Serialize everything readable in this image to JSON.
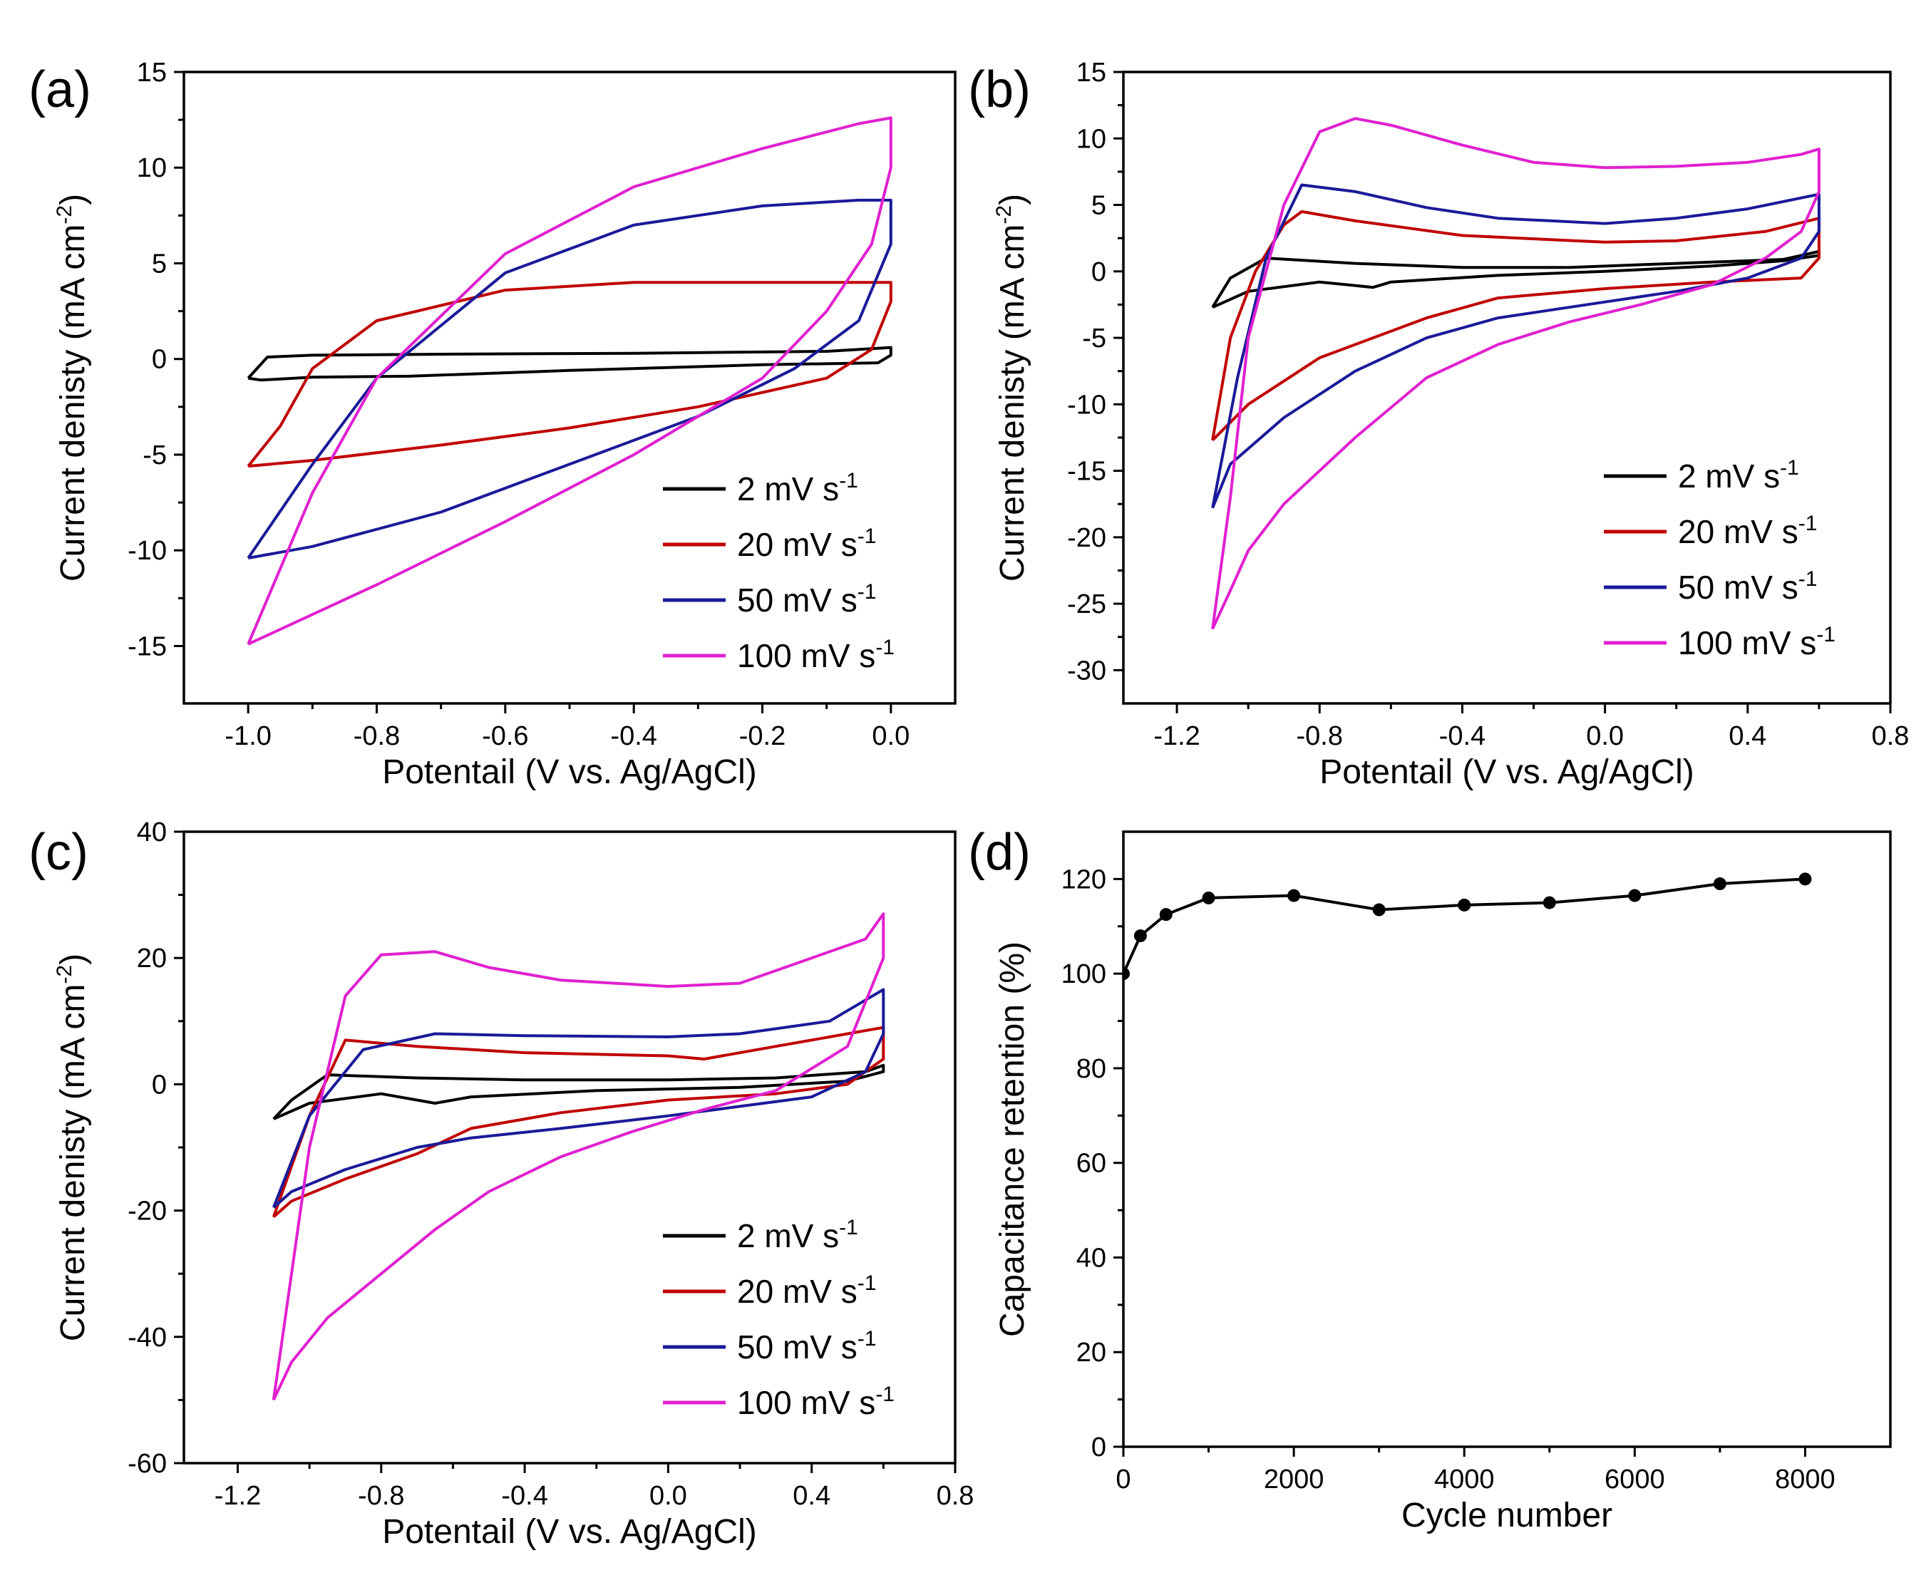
{
  "chart_data": [
    {
      "panel": "(a)",
      "type": "line",
      "xlabel": "Potentail (V vs. Ag/AgCl)",
      "ylabel": "Current denisty (mA cm-2)",
      "ylabel_main": "Current denisty (mA cm",
      "ylabel_sup": "-2",
      "ylabel_end": ")",
      "xlim": [
        -1.1,
        0.1
      ],
      "ylim": [
        -18,
        15
      ],
      "xticks": [
        -1.0,
        -0.8,
        -0.6,
        -0.4,
        -0.2,
        0.0
      ],
      "xtick_labels": [
        "-1.0",
        "-0.8",
        "-0.6",
        "-0.4",
        "-0.2",
        "0.0"
      ],
      "yticks": [
        -15,
        -10,
        -5,
        0,
        5,
        10,
        15
      ],
      "ytick_labels": [
        "-15",
        "-10",
        "-5",
        "0",
        "5",
        "10",
        "15"
      ],
      "legend_position": "bottom-right",
      "series": [
        {
          "name": "2 mV s-1",
          "label": "2 mV s",
          "sup": "-1",
          "color": "#000000",
          "x": [
            -1.0,
            -0.97,
            -0.9,
            -0.7,
            -0.4,
            -0.1,
            0.0,
            0.0,
            -0.02,
            -0.2,
            -0.5,
            -0.75,
            -0.9,
            -0.98,
            -1.0
          ],
          "y": [
            -1.0,
            0.1,
            0.2,
            0.25,
            0.3,
            0.4,
            0.6,
            0.2,
            -0.2,
            -0.3,
            -0.6,
            -0.9,
            -0.95,
            -1.1,
            -1.0
          ]
        },
        {
          "name": "20 mV s-1",
          "label": "20 mV s",
          "sup": "-1",
          "color": "#c00000",
          "x": [
            -1.0,
            -0.95,
            -0.9,
            -0.8,
            -0.6,
            -0.4,
            -0.2,
            0.0,
            0.0,
            -0.03,
            -0.1,
            -0.3,
            -0.5,
            -0.7,
            -0.9,
            -1.0
          ],
          "y": [
            -5.6,
            -3.5,
            -0.5,
            2.0,
            3.6,
            4.0,
            4.0,
            4.0,
            3.0,
            0.5,
            -1.0,
            -2.5,
            -3.6,
            -4.5,
            -5.3,
            -5.6
          ]
        },
        {
          "name": "50 mV s-1",
          "label": "50 mV s",
          "sup": "-1",
          "color": "#1a1a99",
          "x": [
            -1.0,
            -0.9,
            -0.8,
            -0.6,
            -0.4,
            -0.2,
            -0.05,
            0.0,
            0.0,
            -0.05,
            -0.15,
            -0.3,
            -0.5,
            -0.7,
            -0.9,
            -1.0
          ],
          "y": [
            -10.4,
            -5.5,
            -1.0,
            4.5,
            7.0,
            8.0,
            8.3,
            8.3,
            6.0,
            2.0,
            -0.5,
            -3.0,
            -5.5,
            -8.0,
            -9.8,
            -10.4
          ]
        },
        {
          "name": "100 mV s-1",
          "label": "100 mV s",
          "sup": "-1",
          "color": "#e020d0",
          "x": [
            -1.0,
            -0.9,
            -0.8,
            -0.6,
            -0.4,
            -0.2,
            -0.05,
            0.0,
            0.0,
            -0.03,
            -0.1,
            -0.2,
            -0.4,
            -0.6,
            -0.8,
            -1.0
          ],
          "y": [
            -14.9,
            -7.0,
            -1.0,
            5.5,
            9.0,
            11.0,
            12.3,
            12.6,
            10.0,
            6.0,
            2.5,
            -1.0,
            -5.0,
            -8.5,
            -11.8,
            -14.9
          ]
        }
      ]
    },
    {
      "panel": "(b)",
      "type": "line",
      "xlabel": "Potentail (V vs. Ag/AgCl)",
      "ylabel": "Current denisty (mA cm-2)",
      "ylabel_main": "Current denisty (mA cm",
      "ylabel_sup": "-2",
      "ylabel_end": ")",
      "xlim": [
        -1.35,
        0.8
      ],
      "ylim": [
        -32.5,
        15
      ],
      "xticks": [
        -1.2,
        -0.8,
        -0.4,
        0.0,
        0.4,
        0.8
      ],
      "xtick_labels": [
        "-1.2",
        "-0.8",
        "-0.4",
        "0.0",
        "0.4",
        "0.8"
      ],
      "yticks": [
        -30,
        -25,
        -20,
        -15,
        -10,
        -5,
        0,
        5,
        10,
        15
      ],
      "ytick_labels": [
        "-30",
        "-25",
        "-20",
        "-15",
        "-10",
        "-5",
        "0",
        "5",
        "10",
        "15"
      ],
      "legend_position": "bottom-right",
      "series": [
        {
          "name": "2 mV s-1",
          "label": "2 mV s",
          "sup": "-1",
          "color": "#000000",
          "x": [
            -1.1,
            -1.05,
            -0.95,
            -0.7,
            -0.4,
            -0.1,
            0.2,
            0.5,
            0.6,
            0.6,
            0.5,
            0.3,
            0.0,
            -0.3,
            -0.6,
            -0.65,
            -0.8,
            -1.0,
            -1.1
          ],
          "y": [
            -2.7,
            -0.5,
            1.0,
            0.6,
            0.3,
            0.3,
            0.6,
            0.9,
            1.5,
            1.2,
            0.8,
            0.4,
            0.0,
            -0.3,
            -0.8,
            -1.2,
            -0.8,
            -1.5,
            -2.7
          ]
        },
        {
          "name": "20 mV s-1",
          "label": "20 mV s",
          "sup": "-1",
          "color": "#c00000",
          "x": [
            -1.1,
            -1.05,
            -0.98,
            -0.9,
            -0.85,
            -0.7,
            -0.4,
            0.0,
            0.2,
            0.45,
            0.6,
            0.6,
            0.55,
            0.3,
            0.0,
            -0.3,
            -0.5,
            -0.6,
            -0.8,
            -1.0,
            -1.1
          ],
          "y": [
            -12.7,
            -5.0,
            0.0,
            3.5,
            4.5,
            3.8,
            2.7,
            2.2,
            2.3,
            3.0,
            4.0,
            1.0,
            -0.5,
            -0.8,
            -1.3,
            -2.0,
            -3.5,
            -4.5,
            -6.5,
            -10.0,
            -12.7
          ]
        },
        {
          "name": "50 mV s-1",
          "label": "50 mV s",
          "sup": "-1",
          "color": "#1a1a99",
          "x": [
            -1.1,
            -1.03,
            -0.95,
            -0.85,
            -0.7,
            -0.5,
            -0.3,
            0.0,
            0.2,
            0.4,
            0.6,
            0.6,
            0.55,
            0.4,
            0.2,
            0.0,
            -0.3,
            -0.5,
            -0.7,
            -0.9,
            -1.05,
            -1.1
          ],
          "y": [
            -17.8,
            -8.0,
            1.0,
            6.5,
            6.0,
            4.8,
            4.0,
            3.6,
            4.0,
            4.7,
            5.8,
            3.0,
            1.0,
            -0.5,
            -1.5,
            -2.3,
            -3.5,
            -5.0,
            -7.5,
            -11.0,
            -14.5,
            -17.8
          ]
        },
        {
          "name": "100 mV s-1",
          "label": "100 mV s",
          "sup": "-1",
          "color": "#e020d0",
          "x": [
            -1.1,
            -1.05,
            -1.0,
            -0.9,
            -0.8,
            -0.7,
            -0.6,
            -0.4,
            -0.2,
            0.0,
            0.2,
            0.4,
            0.55,
            0.6,
            0.6,
            0.55,
            0.45,
            0.3,
            0.1,
            -0.1,
            -0.3,
            -0.5,
            -0.7,
            -0.9,
            -1.0,
            -1.05,
            -1.1
          ],
          "y": [
            -26.9,
            -17.0,
            -5.0,
            5.0,
            10.5,
            11.5,
            11.0,
            9.5,
            8.2,
            7.8,
            7.9,
            8.2,
            8.8,
            9.2,
            6.0,
            3.0,
            1.0,
            -1.0,
            -2.5,
            -3.8,
            -5.5,
            -8.0,
            -12.5,
            -17.5,
            -21.0,
            -24.0,
            -26.9
          ]
        }
      ]
    },
    {
      "panel": "(c)",
      "type": "line",
      "xlabel": "Potentail (V vs. Ag/AgCl)",
      "ylabel": "Current denisty (mA cm-2)",
      "ylabel_main": "Current denisty (mA cm",
      "ylabel_sup": "-2",
      "ylabel_end": ")",
      "xlim": [
        -1.35,
        0.8
      ],
      "ylim": [
        -60,
        40
      ],
      "xticks": [
        -1.2,
        -0.8,
        -0.4,
        0.0,
        0.4,
        0.8
      ],
      "xtick_labels": [
        "-1.2",
        "-0.8",
        "-0.4",
        "0.0",
        "0.4",
        "0.8"
      ],
      "yticks": [
        -60,
        -40,
        -20,
        0,
        20,
        40
      ],
      "ytick_labels": [
        "-60",
        "-40",
        "-20",
        "0",
        "20",
        "40"
      ],
      "legend_position": "bottom-right",
      "series": [
        {
          "name": "2 mV s-1",
          "label": "2 mV s",
          "sup": "-1",
          "color": "#000000",
          "x": [
            -1.1,
            -1.05,
            -0.95,
            -0.7,
            -0.4,
            0.0,
            0.3,
            0.55,
            0.6,
            0.6,
            0.5,
            0.2,
            -0.2,
            -0.55,
            -0.65,
            -0.8,
            -1.0,
            -1.1
          ],
          "y": [
            -5.5,
            -2.5,
            1.5,
            1.0,
            0.7,
            0.7,
            1.0,
            2.0,
            3.0,
            2.0,
            0.5,
            -0.5,
            -1.0,
            -2.0,
            -3.0,
            -1.5,
            -3.0,
            -5.5
          ]
        },
        {
          "name": "20 mV s-1",
          "label": "20 mV s",
          "sup": "-1",
          "color": "#c00000",
          "x": [
            -1.1,
            -1.0,
            -0.9,
            -0.7,
            -0.4,
            0.0,
            0.1,
            0.3,
            0.5,
            0.6,
            0.6,
            0.5,
            0.3,
            0.0,
            -0.3,
            -0.55,
            -0.7,
            -0.9,
            -1.05,
            -1.1
          ],
          "y": [
            -21.0,
            -5.0,
            7.0,
            6.0,
            5.0,
            4.5,
            4.0,
            6.0,
            8.0,
            9.0,
            4.0,
            0.0,
            -1.5,
            -2.5,
            -4.5,
            -7.0,
            -11.0,
            -15.0,
            -18.5,
            -21.0
          ]
        },
        {
          "name": "50 mV s-1",
          "label": "50 mV s",
          "sup": "-1",
          "color": "#1a1a99",
          "x": [
            -1.1,
            -1.0,
            -0.85,
            -0.65,
            -0.4,
            0.0,
            0.2,
            0.45,
            0.6,
            0.6,
            0.55,
            0.4,
            0.2,
            0.0,
            -0.3,
            -0.55,
            -0.7,
            -0.9,
            -1.05,
            -1.1
          ],
          "y": [
            -19.5,
            -5.0,
            5.5,
            8.0,
            7.7,
            7.5,
            8.0,
            10.0,
            15.0,
            8.0,
            2.0,
            -2.0,
            -3.5,
            -5.0,
            -7.0,
            -8.5,
            -10.0,
            -13.5,
            -17.0,
            -19.5
          ]
        },
        {
          "name": "100 mV s-1",
          "label": "100 mV s",
          "sup": "-1",
          "color": "#e020d0",
          "x": [
            -1.1,
            -1.05,
            -1.0,
            -0.9,
            -0.8,
            -0.65,
            -0.5,
            -0.3,
            0.0,
            0.2,
            0.4,
            0.55,
            0.6,
            0.6,
            0.5,
            0.3,
            0.1,
            -0.1,
            -0.3,
            -0.5,
            -0.65,
            -0.8,
            -0.95,
            -1.05,
            -1.1
          ],
          "y": [
            -50.0,
            -30.0,
            -10.0,
            14.0,
            20.5,
            21.0,
            18.5,
            16.5,
            15.5,
            16.0,
            20.0,
            23.0,
            27.0,
            20.0,
            6.0,
            -1.0,
            -4.0,
            -7.5,
            -11.5,
            -17.0,
            -23.0,
            -30.0,
            -37.0,
            -44.0,
            -50.0
          ]
        }
      ]
    },
    {
      "panel": "(d)",
      "type": "line",
      "xlabel": "Cycle number",
      "ylabel": "Capacitance retention (%)",
      "xlim": [
        0,
        9000
      ],
      "ylim": [
        0,
        130
      ],
      "xticks": [
        0,
        2000,
        4000,
        6000,
        8000
      ],
      "xtick_labels": [
        "0",
        "2000",
        "4000",
        "6000",
        "8000"
      ],
      "yticks": [
        0,
        20,
        40,
        60,
        80,
        100,
        120
      ],
      "ytick_labels": [
        "0",
        "20",
        "40",
        "60",
        "80",
        "100",
        "120"
      ],
      "series": [
        {
          "name": "Capacitance retention",
          "color": "#000000",
          "markers": true,
          "x": [
            0,
            200,
            500,
            1000,
            2000,
            3000,
            4000,
            5000,
            6000,
            7000,
            8000
          ],
          "y": [
            100,
            108,
            112.5,
            116,
            116.5,
            113.5,
            114.5,
            115,
            116.5,
            119,
            120
          ]
        }
      ]
    }
  ]
}
